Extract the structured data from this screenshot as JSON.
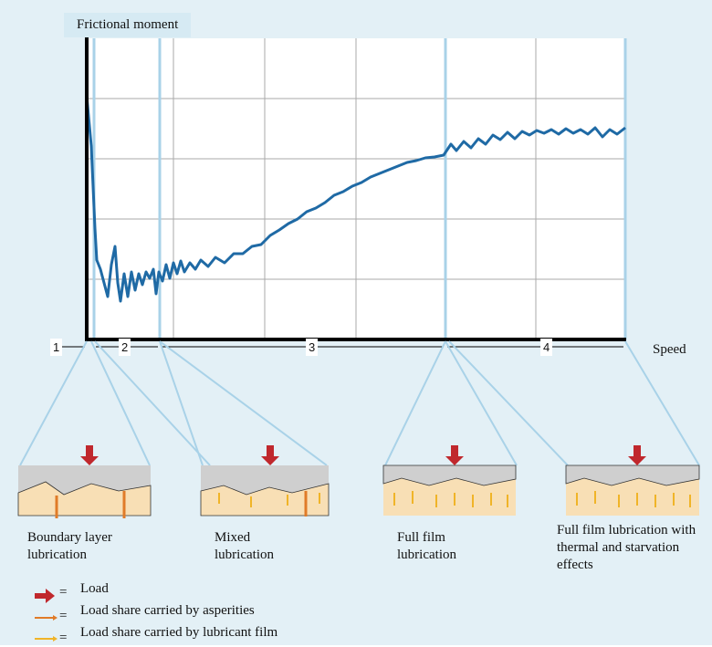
{
  "header": {
    "y_label": "Frictional moment",
    "x_label": "Speed"
  },
  "regions": [
    "1",
    "2",
    "3",
    "4"
  ],
  "panels": [
    {
      "label": "Boundary layer lubrication"
    },
    {
      "label": "Mixed lubrication"
    },
    {
      "label": "Full film lubrication"
    },
    {
      "label": "Full film lubrication with thermal and starvation effects"
    }
  ],
  "legend": [
    {
      "label": "Load",
      "symbol": "="
    },
    {
      "label": "Load share carried by asperities",
      "symbol": "="
    },
    {
      "label": "Load share carried by lubricant film",
      "symbol": "="
    }
  ]
}
